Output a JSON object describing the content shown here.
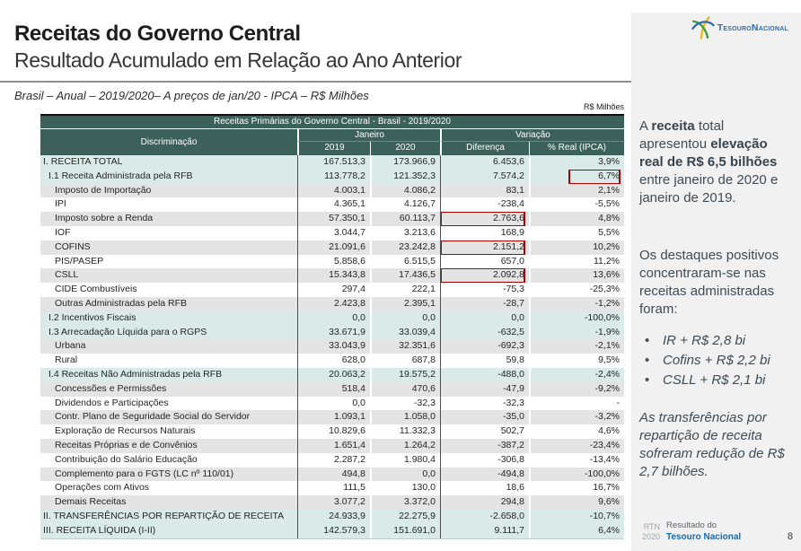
{
  "colors": {
    "header_teal": "#3c615b",
    "row_teal": "#d9eae8",
    "row_gray": "#e4e4e4",
    "highlight_red": "#b30000",
    "logo_blue": "#2a6db5",
    "footer_blue": "#1769aa"
  },
  "logo": {
    "text": "TesouroNacional"
  },
  "header": {
    "title": "Receitas do Governo Central",
    "subtitle": "Resultado Acumulado em Relação ao Ano Anterior",
    "meta": "Brasil – Anual – 2019/2020– A preços de jan/20 - IPCA – R$ Milhões",
    "unit_label": "R$ Milhões"
  },
  "table": {
    "title": "Receitas Primárias do Governo Central - Brasil - 2019/2020",
    "col_discriminacao": "Discriminação",
    "group_janeiro": "Janeiro",
    "group_variacao": "Variação",
    "col_2019": "2019",
    "col_2020": "2020",
    "col_diferenca": "Diferença",
    "col_pct": "% Real (IPCA)",
    "rows": [
      {
        "label": "I. RECEITA TOTAL",
        "v2019": "167.513,3",
        "v2020": "173.966,9",
        "diff": "6.453,6",
        "pct": "3,9%",
        "shade": "teal",
        "indent": 0,
        "box": null
      },
      {
        "label": "I.1 Receita Administrada pela RFB",
        "v2019": "113.778,2",
        "v2020": "121.352,3",
        "diff": "7.574,2",
        "pct": "6,7%",
        "shade": "teal",
        "indent": 1,
        "box": "pct"
      },
      {
        "label": "Imposto de Importação",
        "v2019": "4.003,1",
        "v2020": "4.086,2",
        "diff": "83,1",
        "pct": "2,1%",
        "shade": "gray",
        "indent": 2,
        "box": null
      },
      {
        "label": "IPI",
        "v2019": "4.365,1",
        "v2020": "4.126,7",
        "diff": "-238,4",
        "pct": "-5,5%",
        "shade": "white",
        "indent": 2,
        "box": null
      },
      {
        "label": "Imposto sobre a Renda",
        "v2019": "57.350,1",
        "v2020": "60.113,7",
        "diff": "2.763,6",
        "pct": "4,8%",
        "shade": "gray",
        "indent": 2,
        "box": "diff"
      },
      {
        "label": "IOF",
        "v2019": "3.044,7",
        "v2020": "3.213,6",
        "diff": "168,9",
        "pct": "5,5%",
        "shade": "white",
        "indent": 2,
        "box": null
      },
      {
        "label": "COFINS",
        "v2019": "21.091,6",
        "v2020": "23.242,8",
        "diff": "2.151,2",
        "pct": "10,2%",
        "shade": "gray",
        "indent": 2,
        "box": "diff"
      },
      {
        "label": "PIS/PASEP",
        "v2019": "5.858,6",
        "v2020": "6.515,5",
        "diff": "657,0",
        "pct": "11,2%",
        "shade": "white",
        "indent": 2,
        "box": null
      },
      {
        "label": "CSLL",
        "v2019": "15.343,8",
        "v2020": "17.436,5",
        "diff": "2.092,8",
        "pct": "13,6%",
        "shade": "gray",
        "indent": 2,
        "box": "diff"
      },
      {
        "label": "CIDE  Combustíveis",
        "v2019": "297,4",
        "v2020": "222,1",
        "diff": "-75,3",
        "pct": "-25,3%",
        "shade": "white",
        "indent": 2,
        "box": null
      },
      {
        "label": "Outras Administradas pela RFB",
        "v2019": "2.423,8",
        "v2020": "2.395,1",
        "diff": "-28,7",
        "pct": "-1,2%",
        "shade": "gray",
        "indent": 2,
        "box": null
      },
      {
        "label": "I.2 Incentivos Fiscais",
        "v2019": "0,0",
        "v2020": "0,0",
        "diff": "0,0",
        "pct": "-100,0%",
        "shade": "teal",
        "indent": 1,
        "box": null
      },
      {
        "label": "I.3 Arrecadação Líquida para o RGPS",
        "v2019": "33.671,9",
        "v2020": "33.039,4",
        "diff": "-632,5",
        "pct": "-1,9%",
        "shade": "teal",
        "indent": 1,
        "box": null
      },
      {
        "label": "Urbana",
        "v2019": "33.043,9",
        "v2020": "32.351,6",
        "diff": "-692,3",
        "pct": "-2,1%",
        "shade": "gray",
        "indent": 2,
        "box": null
      },
      {
        "label": "Rural",
        "v2019": "628,0",
        "v2020": "687,8",
        "diff": "59,8",
        "pct": "9,5%",
        "shade": "white",
        "indent": 2,
        "box": null
      },
      {
        "label": "I.4 Receitas Não Administradas pela RFB",
        "v2019": "20.063,2",
        "v2020": "19.575,2",
        "diff": "-488,0",
        "pct": "-2,4%",
        "shade": "teal",
        "indent": 1,
        "box": null
      },
      {
        "label": "Concessões e Permissões",
        "v2019": "518,4",
        "v2020": "470,6",
        "diff": "-47,9",
        "pct": "-9,2%",
        "shade": "gray",
        "indent": 2,
        "box": null
      },
      {
        "label": "Dividendos e Participações",
        "v2019": "0,0",
        "v2020": "-32,3",
        "diff": "-32,3",
        "pct": "-",
        "shade": "white",
        "indent": 2,
        "box": null
      },
      {
        "label": "Contr. Plano de Seguridade Social do Servidor",
        "v2019": "1.093,1",
        "v2020": "1.058,0",
        "diff": "-35,0",
        "pct": "-3,2%",
        "shade": "gray",
        "indent": 2,
        "box": null
      },
      {
        "label": "Exploração de Recursos Naturais",
        "v2019": "10.829,6",
        "v2020": "11.332,3",
        "diff": "502,7",
        "pct": "4,6%",
        "shade": "white",
        "indent": 2,
        "box": null
      },
      {
        "label": "Receitas Próprias e de Convênios",
        "v2019": "1.651,4",
        "v2020": "1.264,2",
        "diff": "-387,2",
        "pct": "-23,4%",
        "shade": "gray",
        "indent": 2,
        "box": null
      },
      {
        "label": "Contribuição do Salário Educação",
        "v2019": "2.287,2",
        "v2020": "1.980,4",
        "diff": "-306,8",
        "pct": "-13,4%",
        "shade": "white",
        "indent": 2,
        "box": null
      },
      {
        "label": "Complemento para o FGTS (LC nº 110/01)",
        "v2019": "494,8",
        "v2020": "0,0",
        "diff": "-494,8",
        "pct": "-100,0%",
        "shade": "gray",
        "indent": 2,
        "box": null
      },
      {
        "label": "Operações com Ativos",
        "v2019": "111,5",
        "v2020": "130,0",
        "diff": "18,6",
        "pct": "16,7%",
        "shade": "white",
        "indent": 2,
        "box": null
      },
      {
        "label": "Demais Receitas",
        "v2019": "3.077,2",
        "v2020": "3.372,0",
        "diff": "294,8",
        "pct": "9,6%",
        "shade": "gray",
        "indent": 2,
        "box": null
      },
      {
        "label": "II. TRANSFERÊNCIAS POR REPARTIÇÃO DE RECEITA",
        "v2019": "24.933,9",
        "v2020": "22.275,9",
        "diff": "-2.658,0",
        "pct": "-10,7%",
        "shade": "teal",
        "indent": 0,
        "box": null
      },
      {
        "label": "III. RECEITA LÍQUIDA (I-II)",
        "v2019": "142.579,3",
        "v2020": "151.691,0",
        "diff": "9.111,7",
        "pct": "6,4%",
        "shade": "teal",
        "indent": 0,
        "box": null
      }
    ]
  },
  "sidebar": {
    "p1_parts": [
      {
        "t": "A ",
        "b": false
      },
      {
        "t": "receita",
        "b": true
      },
      {
        "t": "  total apresentou ",
        "b": false
      },
      {
        "t": "elevação real de R$ 6,5 bilhões",
        "b": true
      },
      {
        "t": " entre janeiro de 2020 e janeiro de 2019.",
        "b": false
      }
    ],
    "p2": "Os destaques positivos concentraram-se nas receitas administradas foram:",
    "bullets": [
      "IR + R$ 2,8 bi",
      "Cofins + R$ 2,2 bi",
      "CSLL  + R$ 2,1 bi"
    ],
    "p3": "As transferências por repartição de receita sofreram redução de R$ 2,7 bilhões."
  },
  "footer": {
    "rtn_line1": "RTN",
    "rtn_line2": "2020",
    "label_line1": "Resultado do",
    "label_line2": "Tesouro Nacional",
    "page": "8"
  }
}
